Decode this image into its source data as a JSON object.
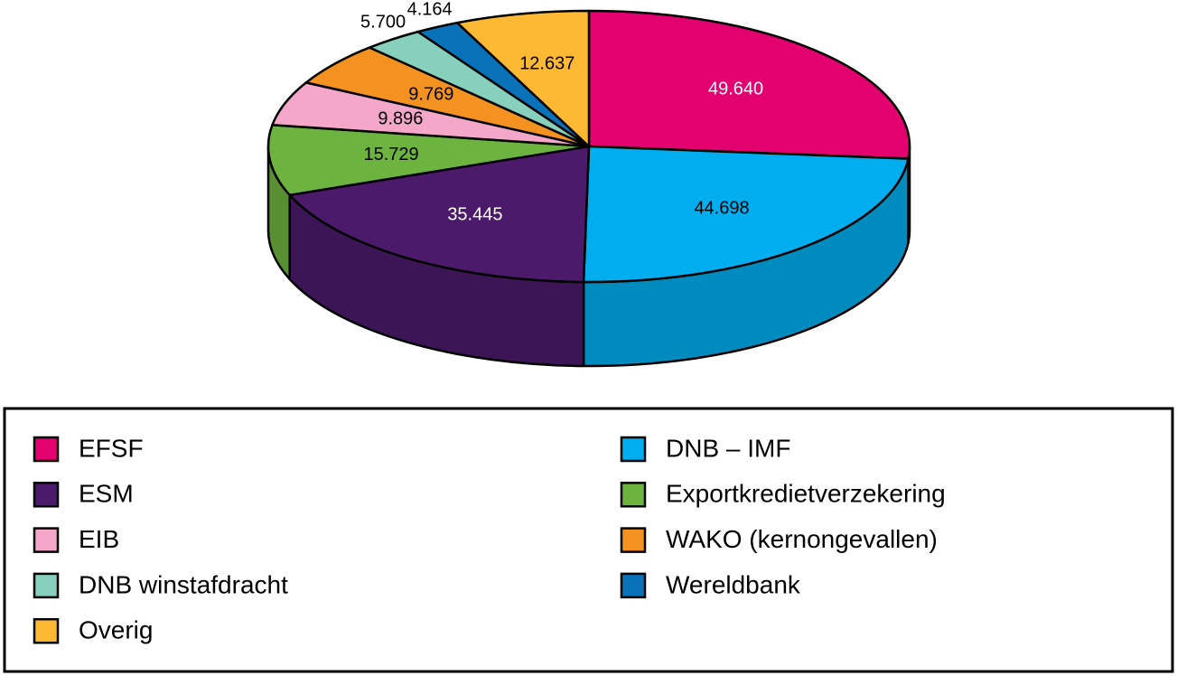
{
  "chart_data": {
    "type": "pie3d",
    "categories": [
      "EFSF",
      "DNB – IMF",
      "ESM",
      "Exportkredietverzekering",
      "EIB",
      "WAKO (kernongevallen)",
      "DNB winstafdracht",
      "Wereldbank",
      "Overig"
    ],
    "values": [
      49640,
      44698,
      35445,
      15729,
      9896,
      9769,
      5700,
      4164,
      12637
    ],
    "value_labels": [
      "49.640",
      "44.698",
      "35.445",
      "15.729",
      "9.896",
      "9.769",
      "5.700",
      "4.164",
      "12.637"
    ],
    "colors": [
      "#e3006f",
      "#00aeef",
      "#4b1a6b",
      "#6db33f",
      "#f4a7c9",
      "#f39220",
      "#86d0bd",
      "#0a72b8",
      "#fdb933"
    ],
    "legend": "bottom"
  }
}
